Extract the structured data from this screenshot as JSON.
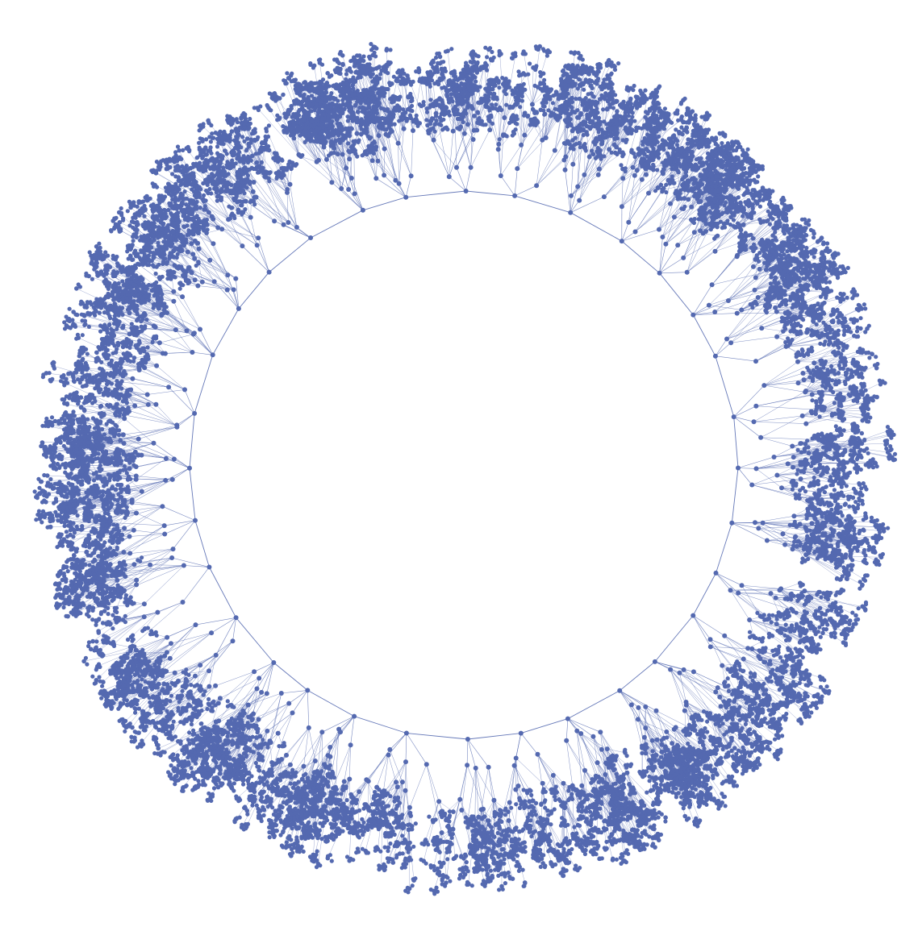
{
  "graph": {
    "layout": "radial-tree",
    "node_color": "#5469b0",
    "edge_color": "#5469b0",
    "background": "#ffffff",
    "branch_count": 32
  }
}
